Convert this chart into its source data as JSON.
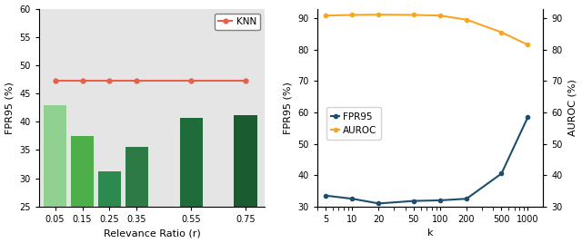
{
  "left": {
    "bar_categories": [
      0.05,
      0.15,
      0.25,
      0.35,
      0.55,
      0.75
    ],
    "bar_values": [
      43.0,
      37.5,
      31.2,
      35.6,
      40.7,
      41.2
    ],
    "bar_colors": [
      "#90d090",
      "#4daf4a",
      "#2d8a4e",
      "#2d7a46",
      "#1f6b3a",
      "#1a5c30"
    ],
    "knn_value": 47.3,
    "knn_color": "#e8604c",
    "xlabel": "Relevance Ratio (r)",
    "ylabel": "FPR95 (%)",
    "ylim": [
      25,
      60
    ],
    "yticks": [
      25,
      30,
      35,
      40,
      45,
      50,
      55,
      60
    ],
    "bg_color": "#e5e5e5",
    "legend_label": "KNN"
  },
  "right": {
    "k_values": [
      5,
      10,
      20,
      50,
      100,
      200,
      500,
      1000
    ],
    "fpr95_values": [
      33.5,
      32.5,
      31.0,
      31.8,
      32.0,
      32.5,
      40.5,
      58.5
    ],
    "auroc_values": [
      90.8,
      91.0,
      91.1,
      91.0,
      90.8,
      89.5,
      85.5,
      81.5
    ],
    "fpr95_color": "#1c4e6e",
    "auroc_color": "#f5a623",
    "xlabel": "k",
    "ylabel_left": "FPR95 (%)",
    "ylabel_right": "AUROC (%)",
    "ylim_left": [
      30,
      93
    ],
    "ylim_right": [
      30,
      93
    ],
    "yticks_both": [
      30,
      40,
      50,
      60,
      70,
      80,
      90
    ],
    "bg_color": "#ffffff",
    "legend_fpr95": "FPR95",
    "legend_auroc": "AUROC"
  }
}
